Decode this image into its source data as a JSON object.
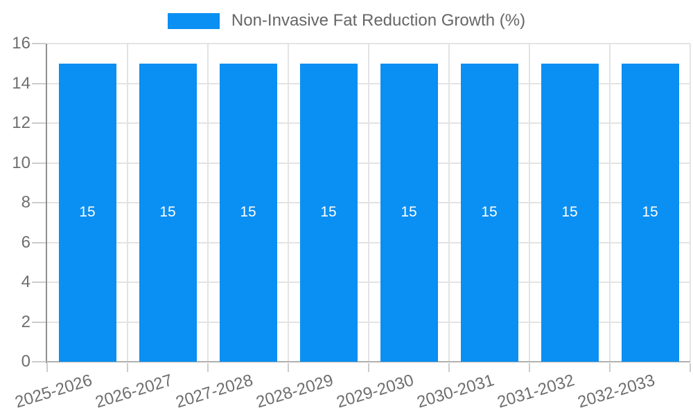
{
  "chart_data": {
    "type": "bar",
    "title": "Non-Invasive Fat Reduction Growth (%)",
    "legend": {
      "position": "top",
      "label": "Non-Invasive Fat Reduction Growth (%)"
    },
    "categories": [
      "2025-2026",
      "2026-2027",
      "2027-2028",
      "2028-2029",
      "2029-2030",
      "2030-2031",
      "2031-2032",
      "2032-2033"
    ],
    "series": [
      {
        "name": "Non-Invasive Fat Reduction Growth (%)",
        "values": [
          15,
          15,
          15,
          15,
          15,
          15,
          15,
          15
        ]
      }
    ],
    "bar_value_labels": [
      "15",
      "15",
      "15",
      "15",
      "15",
      "15",
      "15",
      "15"
    ],
    "xlabel": "",
    "ylabel": "",
    "ylim": [
      0,
      16
    ],
    "yticks": [
      0,
      2,
      4,
      6,
      8,
      10,
      12,
      14,
      16
    ],
    "grid": true,
    "x_label_rotation_deg": -17,
    "colors": {
      "bar": "#0a8ff2",
      "grid": "#e3e3e3",
      "tickmark": "#cccccc",
      "axis": "#8f8f8f",
      "baseline": "#b0b0b0",
      "tick_label": "#6e6e6e",
      "legend_label": "#666666",
      "bar_label": "#ffffff",
      "background": "#ffffff"
    }
  }
}
